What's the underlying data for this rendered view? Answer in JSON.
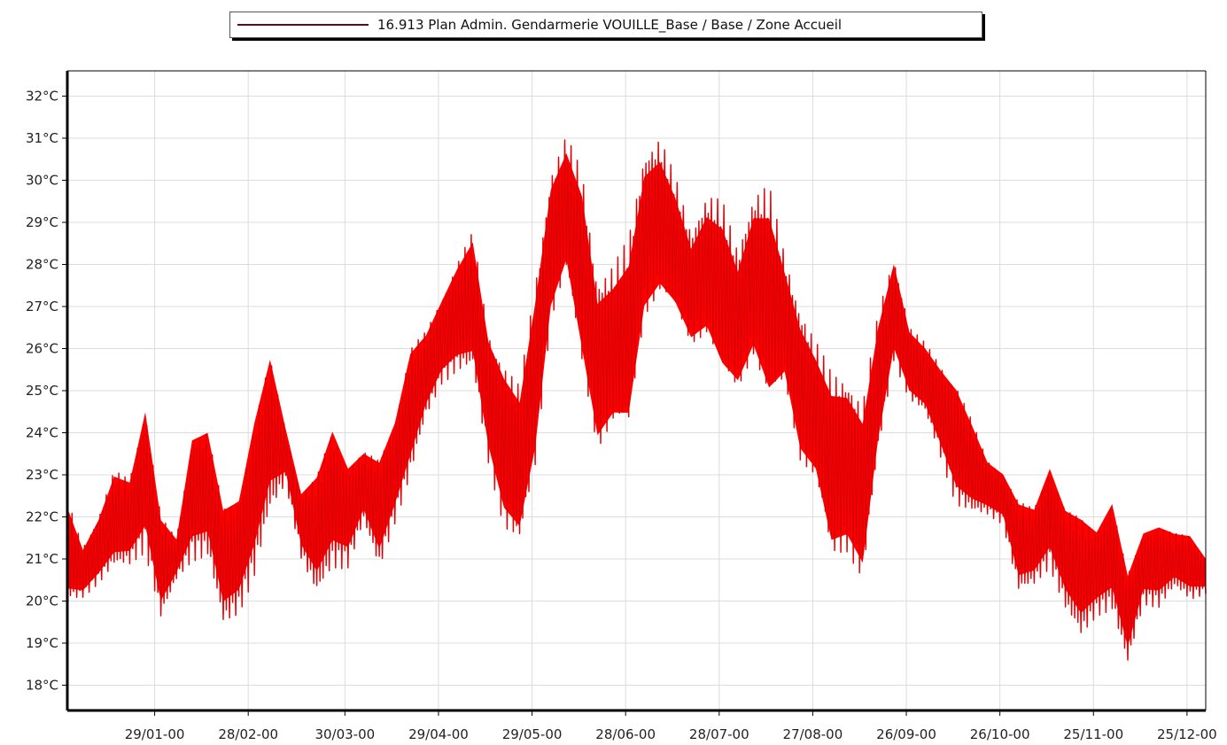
{
  "legend": {
    "label": "16.913 Plan Admin. Gendarmerie VOUILLE_Base  / Base / Zone Accueil"
  },
  "colors": {
    "series_fill": "#ff0000",
    "series_stroke": "#5a0a1a",
    "grid": "#dcdcdc",
    "axis": "#000000"
  },
  "chart_data": {
    "type": "line",
    "title": "",
    "xlabel": "",
    "ylabel": "",
    "ylim": [
      17.4,
      32.6
    ],
    "xlim": [
      "2000-01-01",
      "2000-12-31"
    ],
    "grid": true,
    "legend_position": "top-center",
    "y_ticks": [
      "18°C",
      "19°C",
      "20°C",
      "21°C",
      "22°C",
      "23°C",
      "24°C",
      "25°C",
      "26°C",
      "27°C",
      "28°C",
      "29°C",
      "30°C",
      "31°C",
      "32°C"
    ],
    "x_ticks": [
      "29/01-00",
      "28/02-00",
      "30/03-00",
      "29/04-00",
      "29/05-00",
      "28/06-00",
      "28/07-00",
      "27/08-00",
      "26/09-00",
      "26/10-00",
      "25/11-00",
      "25/12-00"
    ],
    "series": [
      {
        "name": "16.913 Plan Admin. Gendarmerie VOUILLE_Base  / Base / Zone Accueil",
        "daily_range": {
          "x": [
            "2000-01-01",
            "2000-01-06",
            "2000-01-11",
            "2000-01-16",
            "2000-01-21",
            "2000-01-26",
            "2000-01-31",
            "2000-02-05",
            "2000-02-10",
            "2000-02-15",
            "2000-02-20",
            "2000-02-25",
            "2000-03-01",
            "2000-03-06",
            "2000-03-11",
            "2000-03-16",
            "2000-03-21",
            "2000-03-26",
            "2000-03-31",
            "2000-04-05",
            "2000-04-10",
            "2000-04-15",
            "2000-04-20",
            "2000-04-25",
            "2000-04-30",
            "2000-05-05",
            "2000-05-10",
            "2000-05-15",
            "2000-05-20",
            "2000-05-25",
            "2000-05-30",
            "2000-06-04",
            "2000-06-09",
            "2000-06-14",
            "2000-06-19",
            "2000-06-24",
            "2000-06-29",
            "2000-07-04",
            "2000-07-09",
            "2000-07-14",
            "2000-07-19",
            "2000-07-24",
            "2000-07-29",
            "2000-08-03",
            "2000-08-08",
            "2000-08-13",
            "2000-08-18",
            "2000-08-23",
            "2000-08-28",
            "2000-09-02",
            "2000-09-07",
            "2000-09-12",
            "2000-09-17",
            "2000-09-22",
            "2000-09-27",
            "2000-10-02",
            "2000-10-07",
            "2000-10-12",
            "2000-10-17",
            "2000-10-22",
            "2000-10-27",
            "2000-11-01",
            "2000-11-06",
            "2000-11-11",
            "2000-11-16",
            "2000-11-21",
            "2000-11-26",
            "2000-12-01",
            "2000-12-06",
            "2000-12-11",
            "2000-12-16",
            "2000-12-21",
            "2000-12-26",
            "2000-12-31"
          ],
          "low": [
            19.6,
            19.9,
            20.2,
            20.5,
            20.6,
            20.8,
            19.3,
            20.4,
            20.7,
            20.8,
            19.2,
            19.5,
            20.3,
            21.8,
            22.7,
            20.9,
            19.9,
            20.5,
            20.6,
            21.7,
            20.5,
            21.6,
            22.6,
            24.1,
            24.9,
            25.1,
            25.0,
            22.8,
            21.1,
            20.7,
            22.4,
            26.0,
            27.2,
            24.7,
            22.8,
            23.4,
            23.2,
            25.9,
            26.5,
            26.2,
            25.5,
            25.6,
            24.5,
            24.3,
            25.0,
            23.6,
            24.6,
            22.6,
            22.2,
            20.2,
            20.4,
            19.7,
            22.9,
            25.3,
            24.5,
            24.2,
            23.1,
            21.9,
            21.8,
            21.9,
            21.7,
            20.0,
            20.2,
            20.6,
            19.6,
            18.9,
            19.5,
            19.6,
            18.3,
            19.8,
            19.7,
            20.2,
            19.9,
            20.1
          ],
          "high": [
            22.8,
            21.5,
            22.3,
            23.5,
            23.3,
            25.3,
            22.5,
            21.7,
            24.5,
            24.7,
            22.8,
            23.0,
            25.1,
            26.6,
            24.4,
            22.9,
            23.6,
            24.8,
            23.7,
            23.9,
            23.9,
            24.8,
            26.6,
            26.8,
            27.6,
            28.5,
            29.3,
            26.9,
            26.2,
            25.6,
            28.1,
            30.6,
            31.4,
            30.7,
            28.0,
            28.3,
            29.0,
            31.0,
            31.3,
            30.3,
            29.0,
            29.9,
            29.8,
            28.6,
            30.0,
            30.3,
            28.5,
            27.3,
            26.5,
            25.9,
            25.8,
            25.2,
            27.3,
            28.6,
            26.8,
            26.4,
            26.0,
            25.7,
            24.7,
            23.6,
            23.3,
            22.8,
            22.6,
            23.7,
            22.7,
            22.6,
            22.1,
            22.9,
            21.1,
            22.0,
            22.2,
            21.9,
            21.9,
            21.2
          ]
        }
      }
    ]
  }
}
